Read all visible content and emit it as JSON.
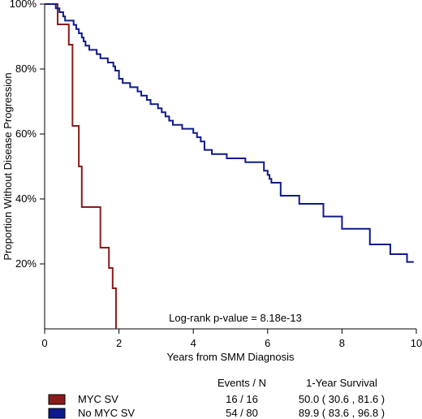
{
  "chart_data": {
    "type": "line",
    "subtype": "kaplan-meier step",
    "xlabel": "Years from SMM Diagnosis",
    "ylabel": "Proportion Without Disease Progression",
    "xlim": [
      0,
      10
    ],
    "ylim": [
      0,
      100
    ],
    "x_ticks": [
      "0",
      "2",
      "4",
      "6",
      "8",
      "10"
    ],
    "x_tick_values": [
      0,
      2,
      4,
      6,
      8,
      10
    ],
    "y_ticks": [
      "20%",
      "40%",
      "60%",
      "80%",
      "100%"
    ],
    "y_tick_values": [
      20,
      40,
      60,
      80,
      100
    ],
    "grid": false,
    "annotation": "Log-rank p-value = 8.18e-13",
    "legend": {
      "events_header": "Events / N",
      "survival_header": "1-Year Survival",
      "placement": "bottom"
    },
    "series": [
      {
        "name": "MYC SV",
        "color": "#8b1a1a",
        "events": "16 / 16",
        "one_year_survival": "50.0 ( 30.6 , 81.6 )",
        "x": [
          0,
          0.35,
          0.65,
          0.75,
          0.8,
          0.92,
          1.0,
          1.5,
          1.73,
          1.83,
          1.92
        ],
        "y": [
          100,
          93.75,
          87.5,
          62.5,
          62.5,
          50.0,
          37.5,
          25.0,
          18.75,
          12.5,
          0
        ]
      },
      {
        "name": "No MYC SV",
        "color": "#0d1a8c",
        "events": "54 / 80",
        "one_year_survival": "89.9 ( 83.6 , 96.8 )",
        "x": [
          0,
          0.3,
          0.4,
          0.5,
          0.55,
          0.78,
          0.85,
          0.92,
          1.0,
          1.05,
          1.1,
          1.2,
          1.4,
          1.5,
          1.7,
          1.85,
          1.9,
          2.0,
          2.1,
          2.3,
          2.5,
          2.6,
          2.75,
          2.85,
          3.05,
          3.15,
          3.25,
          3.35,
          3.45,
          3.7,
          4.0,
          4.1,
          4.2,
          4.3,
          4.5,
          4.9,
          5.4,
          5.9,
          6.0,
          6.05,
          6.1,
          6.35,
          6.85,
          7.5,
          8.0,
          8.75,
          9.3,
          9.75,
          9.93
        ],
        "y": [
          100,
          98.7,
          97.5,
          96.2,
          94.9,
          93.6,
          92.3,
          91.0,
          89.7,
          88.5,
          87.2,
          85.9,
          84.6,
          83.3,
          82.0,
          80.8,
          79.5,
          77.0,
          75.7,
          74.4,
          73.1,
          71.8,
          70.5,
          69.2,
          67.9,
          66.7,
          65.4,
          64.1,
          62.8,
          61.6,
          60.3,
          59.0,
          57.7,
          55.1,
          53.8,
          52.5,
          51.3,
          48.7,
          47.4,
          46.2,
          45.0,
          41.0,
          38.5,
          34.6,
          30.8,
          26.0,
          23.0,
          20.6,
          20.6
        ]
      }
    ]
  }
}
